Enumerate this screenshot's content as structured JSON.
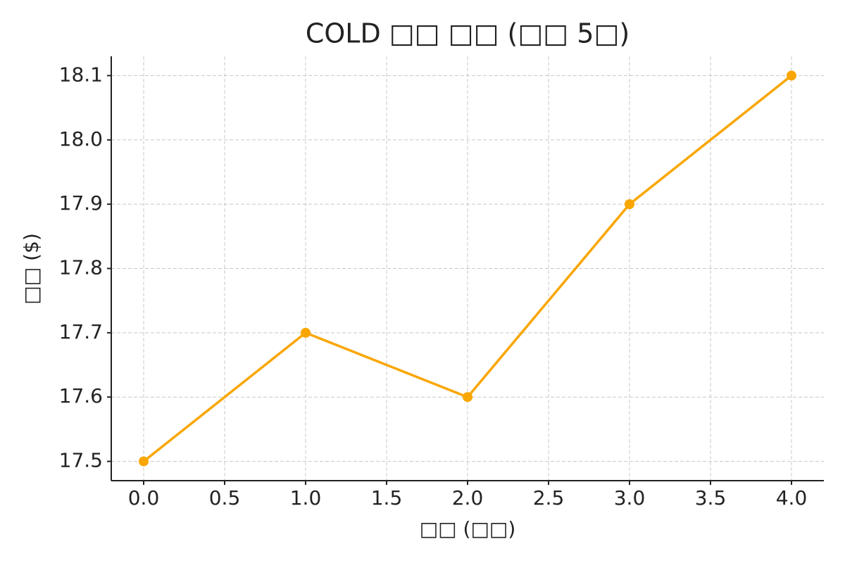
{
  "chart_data": {
    "type": "line",
    "title": "COLD □□ □□ (□□ 5□)",
    "x_label": "□□ (□□)",
    "y_label": "□□ ($)",
    "x": [
      0,
      1,
      2,
      3,
      4
    ],
    "series": [
      {
        "name": "COLD",
        "color": "#f9a602",
        "values": [
          17.5,
          17.7,
          17.6,
          17.9,
          18.1
        ]
      }
    ],
    "xlim": [
      -0.2,
      4.2
    ],
    "xticks": [
      {
        "value": 0,
        "label": "0.0"
      },
      {
        "value": 0.5,
        "label": "0.5"
      },
      {
        "value": 1,
        "label": "1.0"
      },
      {
        "value": 1.5,
        "label": "1.5"
      },
      {
        "value": 2,
        "label": "2.0"
      },
      {
        "value": 2.5,
        "label": "2.5"
      },
      {
        "value": 3,
        "label": "3.0"
      },
      {
        "value": 3.5,
        "label": "3.5"
      },
      {
        "value": 4,
        "label": "4.0"
      }
    ],
    "ylim": [
      17.47,
      18.13
    ],
    "yticks": [
      17.5,
      17.6,
      17.7,
      17.8,
      17.9,
      {
        "value": 18.0,
        "label": "18.0"
      },
      18.1
    ],
    "grid": true
  }
}
